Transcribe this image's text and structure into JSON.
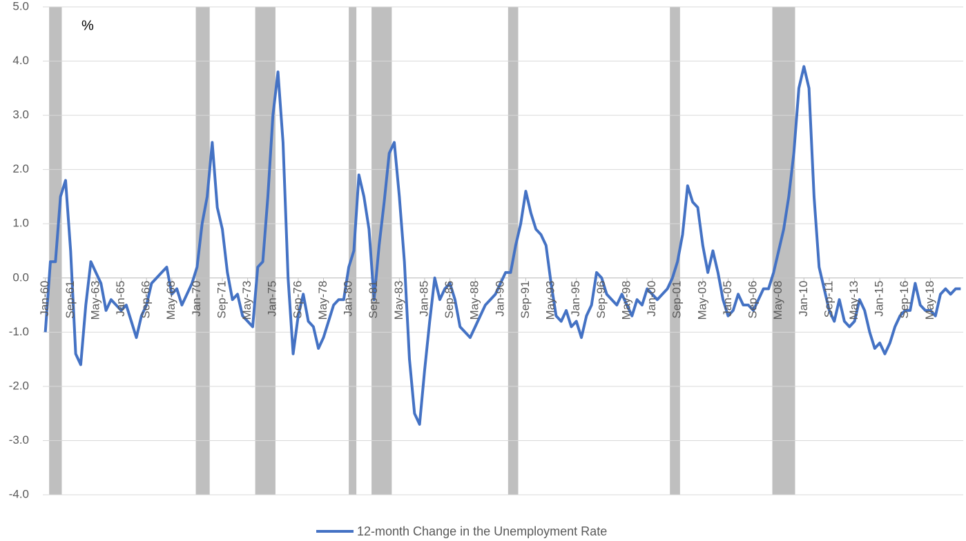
{
  "chart_data": {
    "type": "line",
    "annotation": "%",
    "categories": [
      "Jan-60",
      null,
      null,
      null,
      null,
      "Sep-61",
      null,
      null,
      null,
      null,
      "May-63",
      null,
      null,
      null,
      null,
      "Jan-65",
      null,
      null,
      null,
      null,
      "Sep-66",
      null,
      null,
      null,
      null,
      "May-68",
      null,
      null,
      null,
      null,
      "Jan-70",
      null,
      null,
      null,
      null,
      "Sep-71",
      null,
      null,
      null,
      null,
      "May-73",
      null,
      null,
      null,
      null,
      "Jan-75",
      null,
      null,
      null,
      null,
      "Sep-76",
      null,
      null,
      null,
      null,
      "May-78",
      null,
      null,
      null,
      null,
      "Jan-80",
      null,
      null,
      null,
      null,
      "Sep-81",
      null,
      null,
      null,
      null,
      "May-83",
      null,
      null,
      null,
      null,
      "Jan-85",
      null,
      null,
      null,
      null,
      "Sep-86",
      null,
      null,
      null,
      null,
      "May-88",
      null,
      null,
      null,
      null,
      "Jan-90",
      null,
      null,
      null,
      null,
      "Sep-91",
      null,
      null,
      null,
      null,
      "May-93",
      null,
      null,
      null,
      null,
      "Jan-95",
      null,
      null,
      null,
      null,
      "Sep-96",
      null,
      null,
      null,
      null,
      "May-98",
      null,
      null,
      null,
      null,
      "Jan-00",
      null,
      null,
      null,
      null,
      "Sep-01",
      null,
      null,
      null,
      null,
      "May-03",
      null,
      null,
      null,
      null,
      "Jan-05",
      null,
      null,
      null,
      null,
      "Sep-06",
      null,
      null,
      null,
      null,
      "May-08",
      null,
      null,
      null,
      null,
      "Jan-10",
      null,
      null,
      null,
      null,
      "Sep-11",
      null,
      null,
      null,
      null,
      "May-13",
      null,
      null,
      null,
      null,
      "Jan-15",
      null,
      null,
      null,
      null,
      "Sep-16",
      null,
      null,
      null,
      null,
      "May-18",
      null,
      null,
      null,
      null,
      null,
      null
    ],
    "series": [
      {
        "name": "12-month Change in the Unemployment Rate",
        "color": "#4472c4",
        "values": [
          -1.0,
          0.3,
          0.3,
          1.5,
          1.8,
          0.5,
          -1.4,
          -1.6,
          -0.5,
          0.3,
          0.1,
          -0.1,
          -0.6,
          -0.4,
          -0.5,
          -0.6,
          -0.5,
          -0.8,
          -1.1,
          -0.7,
          -0.5,
          -0.1,
          0.0,
          0.1,
          0.2,
          -0.3,
          -0.2,
          -0.5,
          -0.3,
          -0.1,
          0.2,
          1.0,
          1.5,
          2.5,
          1.3,
          0.9,
          0.1,
          -0.4,
          -0.3,
          -0.7,
          -0.8,
          -0.9,
          0.2,
          0.3,
          1.5,
          3.0,
          3.8,
          2.5,
          0.0,
          -1.4,
          -0.7,
          -0.3,
          -0.8,
          -0.9,
          -1.3,
          -1.1,
          -0.8,
          -0.5,
          -0.4,
          -0.4,
          0.2,
          0.5,
          1.9,
          1.5,
          0.9,
          -0.4,
          0.6,
          1.4,
          2.3,
          2.5,
          1.5,
          0.3,
          -1.5,
          -2.5,
          -2.7,
          -1.7,
          -0.8,
          0.0,
          -0.4,
          -0.2,
          -0.1,
          -0.4,
          -0.9,
          -1.0,
          -1.1,
          -0.9,
          -0.7,
          -0.5,
          -0.4,
          -0.3,
          -0.1,
          0.1,
          0.1,
          0.6,
          1.0,
          1.6,
          1.2,
          0.9,
          0.8,
          0.6,
          -0.1,
          -0.7,
          -0.8,
          -0.6,
          -0.9,
          -0.8,
          -1.1,
          -0.7,
          -0.5,
          0.1,
          0.0,
          -0.3,
          -0.4,
          -0.5,
          -0.3,
          -0.5,
          -0.7,
          -0.4,
          -0.5,
          -0.2,
          -0.3,
          -0.4,
          -0.3,
          -0.2,
          0.0,
          0.3,
          0.8,
          1.7,
          1.4,
          1.3,
          0.6,
          0.1,
          0.5,
          0.1,
          -0.4,
          -0.7,
          -0.6,
          -0.3,
          -0.5,
          -0.5,
          -0.6,
          -0.4,
          -0.2,
          -0.2,
          0.1,
          0.5,
          0.9,
          1.5,
          2.3,
          3.5,
          3.9,
          3.5,
          1.5,
          0.2,
          -0.2,
          -0.6,
          -0.8,
          -0.4,
          -0.8,
          -0.9,
          -0.8,
          -0.4,
          -0.6,
          -1.0,
          -1.3,
          -1.2,
          -1.4,
          -1.2,
          -0.9,
          -0.7,
          -0.6,
          -0.6,
          -0.1,
          -0.5,
          -0.6,
          -0.6,
          -0.7,
          -0.3,
          -0.2,
          -0.3,
          -0.2,
          -0.2
        ]
      }
    ],
    "shaded_periods": {
      "color": "#bfbfbf",
      "ranges": [
        [
          0.75,
          3.25
        ],
        [
          29.75,
          32.5
        ],
        [
          41.5,
          45.5
        ],
        [
          60,
          61.5
        ],
        [
          64.5,
          68.5
        ],
        [
          91.5,
          93.5
        ],
        [
          123.5,
          125.5
        ],
        [
          143.75,
          148.25
        ]
      ]
    },
    "ylim": [
      -4.0,
      5.0
    ],
    "yticks": [
      {
        "value": -4,
        "label": "-4.0"
      },
      {
        "value": -3,
        "label": "-3.0"
      },
      {
        "value": -2,
        "label": "-2.0"
      },
      {
        "value": -1,
        "label": "-1.0"
      },
      {
        "value": 0,
        "label": "0.0"
      },
      {
        "value": 1,
        "label": "1.0"
      },
      {
        "value": 2,
        "label": "2.0"
      },
      {
        "value": 3,
        "label": "3.0"
      },
      {
        "value": 4,
        "label": "4.0"
      },
      {
        "value": 5,
        "label": "5.0"
      }
    ],
    "grid": true,
    "legend": "bottom"
  }
}
